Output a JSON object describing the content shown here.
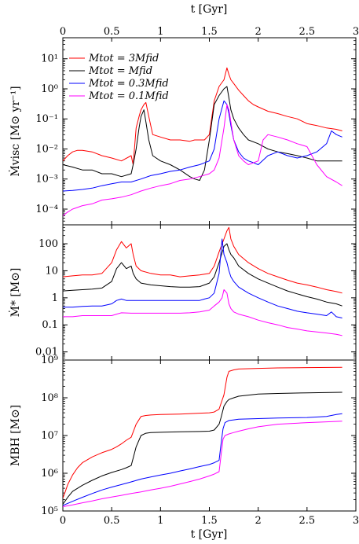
{
  "chart_data": [
    {
      "type": "line",
      "panel": "top",
      "ylabel": "Ṁvisc [M⊙ yr⁻¹]",
      "yscale": "log",
      "ylim": [
        3e-05,
        50
      ],
      "ytick_values": [
        0.0001,
        0.001,
        0.01,
        0.1,
        1,
        10
      ],
      "ytick_labels": [
        "10⁻⁴",
        "10⁻³",
        "10⁻²",
        "10⁻¹",
        "10⁰",
        "10¹"
      ],
      "legend_position": "top-left",
      "series": [
        {
          "name": "Mtot = 3Mfid",
          "color": "#ff0000",
          "x": [
            0,
            0.05,
            0.1,
            0.15,
            0.2,
            0.3,
            0.4,
            0.5,
            0.6,
            0.7,
            0.72,
            0.75,
            0.78,
            0.8,
            0.83,
            0.85,
            0.88,
            0.92,
            1.0,
            1.1,
            1.2,
            1.3,
            1.35,
            1.4,
            1.45,
            1.5,
            1.55,
            1.6,
            1.65,
            1.68,
            1.7,
            1.72,
            1.75,
            1.8,
            1.85,
            1.9,
            1.95,
            2.0,
            2.1,
            2.2,
            2.3,
            2.4,
            2.5,
            2.6,
            2.7,
            2.8,
            2.86
          ],
          "y": [
            0.004,
            0.006,
            0.008,
            0.009,
            0.009,
            0.008,
            0.006,
            0.005,
            0.004,
            0.006,
            0.003,
            0.05,
            0.12,
            0.2,
            0.3,
            0.35,
            0.12,
            0.03,
            0.025,
            0.02,
            0.02,
            0.018,
            0.02,
            0.02,
            0.02,
            0.03,
            0.4,
            1.2,
            2.0,
            5.0,
            3.0,
            2.0,
            1.5,
            0.9,
            0.6,
            0.4,
            0.3,
            0.25,
            0.18,
            0.15,
            0.12,
            0.1,
            0.07,
            0.06,
            0.05,
            0.045,
            0.04
          ]
        },
        {
          "name": "Mtot = Mfid",
          "color": "#000000",
          "x": [
            0,
            0.1,
            0.2,
            0.3,
            0.4,
            0.5,
            0.6,
            0.7,
            0.72,
            0.75,
            0.78,
            0.8,
            0.83,
            0.85,
            0.88,
            0.92,
            1.0,
            1.1,
            1.2,
            1.3,
            1.35,
            1.4,
            1.45,
            1.5,
            1.55,
            1.6,
            1.65,
            1.68,
            1.7,
            1.72,
            1.75,
            1.8,
            1.85,
            1.9,
            2.0,
            2.1,
            2.2,
            2.3,
            2.4,
            2.5,
            2.6,
            2.7,
            2.8,
            2.86
          ],
          "y": [
            0.003,
            0.0025,
            0.002,
            0.002,
            0.0015,
            0.0015,
            0.0012,
            0.0015,
            0.003,
            0.01,
            0.05,
            0.12,
            0.2,
            0.08,
            0.02,
            0.006,
            0.004,
            0.003,
            0.002,
            0.0012,
            0.001,
            0.0009,
            0.002,
            0.02,
            0.3,
            0.6,
            1.0,
            1.2,
            0.5,
            0.2,
            0.1,
            0.05,
            0.03,
            0.02,
            0.015,
            0.01,
            0.008,
            0.007,
            0.006,
            0.005,
            0.004,
            0.004,
            0.004,
            0.004
          ]
        },
        {
          "name": "Mtot = 0.3Mfid",
          "color": "#0000ff",
          "x": [
            0,
            0.1,
            0.2,
            0.3,
            0.4,
            0.5,
            0.6,
            0.7,
            0.8,
            0.9,
            1.0,
            1.1,
            1.2,
            1.3,
            1.4,
            1.5,
            1.55,
            1.6,
            1.65,
            1.68,
            1.7,
            1.72,
            1.75,
            1.8,
            1.85,
            1.9,
            1.95,
            2.0,
            2.1,
            2.2,
            2.3,
            2.4,
            2.5,
            2.6,
            2.7,
            2.75,
            2.8,
            2.86
          ],
          "y": [
            0.0004,
            0.00042,
            0.00045,
            0.0005,
            0.0006,
            0.0007,
            0.0008,
            0.0008,
            0.001,
            0.0013,
            0.0015,
            0.0018,
            0.002,
            0.0025,
            0.003,
            0.004,
            0.01,
            0.1,
            0.4,
            0.3,
            0.15,
            0.06,
            0.02,
            0.008,
            0.005,
            0.004,
            0.0035,
            0.003,
            0.006,
            0.008,
            0.006,
            0.005,
            0.006,
            0.008,
            0.015,
            0.04,
            0.03,
            0.025
          ]
        },
        {
          "name": "Mtot = 0.1Mfid",
          "color": "#ff00ff",
          "x": [
            0,
            0.05,
            0.1,
            0.2,
            0.3,
            0.4,
            0.5,
            0.6,
            0.7,
            0.8,
            0.9,
            1.0,
            1.1,
            1.2,
            1.3,
            1.4,
            1.5,
            1.55,
            1.6,
            1.65,
            1.68,
            1.7,
            1.72,
            1.75,
            1.8,
            1.85,
            1.9,
            2.0,
            2.05,
            2.1,
            2.2,
            2.3,
            2.4,
            2.5,
            2.6,
            2.7,
            2.8,
            2.86
          ],
          "y": [
            6e-05,
            8e-05,
            0.0001,
            0.00013,
            0.00015,
            0.0002,
            0.00022,
            0.00025,
            0.0003,
            0.0004,
            0.0005,
            0.0006,
            0.0007,
            0.0009,
            0.001,
            0.0012,
            0.0015,
            0.002,
            0.005,
            0.05,
            0.3,
            0.2,
            0.08,
            0.02,
            0.006,
            0.004,
            0.003,
            0.004,
            0.02,
            0.03,
            0.025,
            0.02,
            0.015,
            0.012,
            0.003,
            0.0012,
            0.0008,
            0.0006
          ]
        }
      ]
    },
    {
      "type": "line",
      "panel": "middle",
      "ylabel": "Ṁ* [M⊙]",
      "yscale": "log",
      "ylim": [
        0.005,
        500
      ],
      "ytick_values": [
        0.01,
        0.1,
        1,
        10,
        100
      ],
      "ytick_labels": [
        "0.01",
        "0.1",
        "1",
        "10",
        "100"
      ],
      "series": [
        {
          "name": "Mtot = 3Mfid",
          "color": "#ff0000",
          "x": [
            0,
            0.1,
            0.2,
            0.3,
            0.4,
            0.5,
            0.55,
            0.6,
            0.65,
            0.7,
            0.72,
            0.75,
            0.8,
            0.9,
            1.0,
            1.1,
            1.2,
            1.3,
            1.4,
            1.45,
            1.5,
            1.55,
            1.6,
            1.65,
            1.68,
            1.7,
            1.72,
            1.75,
            1.8,
            1.9,
            2.0,
            2.1,
            2.2,
            2.3,
            2.4,
            2.5,
            2.6,
            2.7,
            2.8,
            2.86
          ],
          "y": [
            6,
            6.5,
            7,
            7,
            8,
            20,
            60,
            120,
            70,
            100,
            40,
            15,
            10,
            8,
            7,
            7,
            6,
            6.5,
            7,
            7.5,
            8,
            15,
            50,
            150,
            300,
            400,
            150,
            80,
            40,
            20,
            12,
            8,
            6,
            4.5,
            3.5,
            3,
            2.5,
            2,
            1.7,
            1.5
          ]
        },
        {
          "name": "Mtot = Mfid",
          "color": "#000000",
          "x": [
            0,
            0.1,
            0.2,
            0.3,
            0.4,
            0.5,
            0.55,
            0.6,
            0.65,
            0.7,
            0.72,
            0.75,
            0.8,
            0.9,
            1.0,
            1.1,
            1.2,
            1.3,
            1.4,
            1.45,
            1.5,
            1.55,
            1.6,
            1.65,
            1.68,
            1.7,
            1.72,
            1.75,
            1.8,
            1.9,
            2.0,
            2.1,
            2.2,
            2.3,
            2.4,
            2.5,
            2.6,
            2.7,
            2.8,
            2.86
          ],
          "y": [
            1.8,
            1.9,
            2,
            2.1,
            2.3,
            4,
            12,
            20,
            12,
            15,
            8,
            5,
            3.5,
            3,
            2.8,
            2.6,
            2.5,
            2.5,
            2.6,
            3,
            3.5,
            6,
            20,
            80,
            100,
            60,
            40,
            30,
            15,
            8,
            5,
            3.5,
            2.5,
            1.8,
            1.4,
            1.1,
            0.9,
            0.7,
            0.6,
            0.5
          ]
        },
        {
          "name": "Mtot = 0.3Mfid",
          "color": "#0000ff",
          "x": [
            0,
            0.1,
            0.2,
            0.3,
            0.4,
            0.5,
            0.55,
            0.6,
            0.65,
            0.7,
            0.8,
            0.9,
            1.0,
            1.1,
            1.2,
            1.3,
            1.4,
            1.45,
            1.5,
            1.55,
            1.6,
            1.63,
            1.65,
            1.68,
            1.7,
            1.72,
            1.75,
            1.8,
            1.9,
            2.0,
            2.1,
            2.2,
            2.3,
            2.4,
            2.5,
            2.6,
            2.7,
            2.75,
            2.8,
            2.86
          ],
          "y": [
            0.45,
            0.45,
            0.48,
            0.5,
            0.5,
            0.6,
            0.8,
            0.9,
            0.8,
            0.8,
            0.8,
            0.8,
            0.8,
            0.8,
            0.8,
            0.8,
            0.8,
            0.9,
            1,
            1.5,
            8,
            150,
            40,
            20,
            10,
            6,
            4,
            2.5,
            1.5,
            1,
            0.7,
            0.5,
            0.4,
            0.32,
            0.28,
            0.25,
            0.22,
            0.3,
            0.2,
            0.18
          ]
        },
        {
          "name": "Mtot = 0.1Mfid",
          "color": "#ff00ff",
          "x": [
            0,
            0.1,
            0.2,
            0.3,
            0.4,
            0.5,
            0.55,
            0.6,
            0.7,
            0.8,
            0.9,
            1.0,
            1.1,
            1.2,
            1.3,
            1.4,
            1.5,
            1.55,
            1.6,
            1.63,
            1.65,
            1.68,
            1.7,
            1.72,
            1.75,
            1.8,
            1.9,
            2.0,
            2.1,
            2.2,
            2.3,
            2.4,
            2.5,
            2.6,
            2.7,
            2.8,
            2.86
          ],
          "y": [
            0.2,
            0.2,
            0.22,
            0.22,
            0.22,
            0.22,
            0.25,
            0.28,
            0.27,
            0.27,
            0.27,
            0.27,
            0.27,
            0.27,
            0.28,
            0.3,
            0.35,
            0.5,
            0.7,
            1,
            2,
            1.5,
            0.6,
            0.4,
            0.3,
            0.25,
            0.2,
            0.15,
            0.12,
            0.1,
            0.08,
            0.07,
            0.06,
            0.055,
            0.05,
            0.045,
            0.04
          ]
        }
      ]
    },
    {
      "type": "line",
      "panel": "bottom",
      "xlabel": "t [Gyr]",
      "ylabel": "MBH [M⊙]",
      "yscale": "log",
      "ylim": [
        100000,
        1000000000
      ],
      "ytick_values": [
        100000,
        1000000,
        10000000,
        100000000,
        1000000000
      ],
      "ytick_labels": [
        "10⁵",
        "10⁶",
        "10⁷",
        "10⁸",
        "10⁹"
      ],
      "xlim": [
        0,
        3
      ],
      "xtick_values": [
        0,
        0.5,
        1,
        1.5,
        2,
        2.5,
        3
      ],
      "xtick_labels": [
        "0",
        "0.5",
        "1",
        "1.5",
        "2",
        "2.5",
        "3"
      ],
      "series": [
        {
          "name": "Mtot = 3Mfid",
          "color": "#ff0000",
          "x": [
            0,
            0.02,
            0.05,
            0.1,
            0.15,
            0.2,
            0.3,
            0.4,
            0.5,
            0.55,
            0.6,
            0.65,
            0.7,
            0.75,
            0.8,
            0.85,
            0.9,
            1.0,
            1.2,
            1.4,
            1.5,
            1.55,
            1.6,
            1.65,
            1.68,
            1.7,
            1.75,
            1.8,
            2.0,
            2.2,
            2.5,
            2.86
          ],
          "y": [
            220000,
            300000,
            500000,
            900000,
            1400000,
            1900000,
            2700000,
            3500000,
            4300000,
            5000000,
            6000000,
            7500000,
            9000000,
            20000000,
            32000000,
            34000000,
            35000000,
            36000000,
            37000000,
            39000000,
            40000000,
            42000000,
            50000000,
            120000000,
            350000000,
            500000000,
            550000000,
            580000000,
            600000000,
            620000000,
            630000000,
            640000000
          ]
        },
        {
          "name": "Mtot = Mfid",
          "color": "#000000",
          "x": [
            0,
            0.05,
            0.1,
            0.2,
            0.3,
            0.4,
            0.5,
            0.6,
            0.65,
            0.7,
            0.72,
            0.75,
            0.8,
            0.85,
            0.9,
            1.0,
            1.2,
            1.4,
            1.5,
            1.55,
            1.6,
            1.62,
            1.65,
            1.68,
            1.7,
            1.75,
            1.8,
            2.0,
            2.2,
            2.5,
            2.86
          ],
          "y": [
            150000,
            230000,
            330000,
            480000,
            650000,
            850000,
            1050000,
            1250000,
            1400000,
            1600000,
            2500000,
            5000000,
            10000000,
            11500000,
            12000000,
            12200000,
            12500000,
            12800000,
            13000000,
            14000000,
            20000000,
            30000000,
            60000000,
            80000000,
            90000000,
            100000000,
            110000000,
            125000000,
            130000000,
            135000000,
            140000000
          ]
        },
        {
          "name": "Mtot = 0.3Mfid",
          "color": "#0000ff",
          "x": [
            0,
            0.1,
            0.2,
            0.3,
            0.4,
            0.5,
            0.6,
            0.7,
            0.8,
            0.9,
            1.0,
            1.1,
            1.2,
            1.3,
            1.4,
            1.5,
            1.55,
            1.6,
            1.62,
            1.64,
            1.66,
            1.7,
            1.75,
            1.8,
            2.0,
            2.2,
            2.5,
            2.7,
            2.8,
            2.86
          ],
          "y": [
            140000,
            180000,
            230000,
            290000,
            360000,
            430000,
            500000,
            590000,
            700000,
            800000,
            900000,
            1000000,
            1150000,
            1300000,
            1500000,
            1700000,
            1900000,
            2200000,
            6000000,
            15000000,
            22000000,
            25000000,
            26000000,
            27000000,
            28000000,
            29000000,
            30000000,
            32000000,
            36000000,
            38000000
          ]
        },
        {
          "name": "Mtot = 0.1Mfid",
          "color": "#ff00ff",
          "x": [
            0,
            0.1,
            0.2,
            0.3,
            0.4,
            0.5,
            0.6,
            0.7,
            0.8,
            0.9,
            1.0,
            1.1,
            1.2,
            1.3,
            1.4,
            1.5,
            1.55,
            1.6,
            1.62,
            1.64,
            1.66,
            1.7,
            1.75,
            1.8,
            1.9,
            2.0,
            2.2,
            2.5,
            2.7,
            2.86
          ],
          "y": [
            130000,
            145000,
            165000,
            185000,
            210000,
            235000,
            260000,
            290000,
            320000,
            360000,
            400000,
            450000,
            520000,
            600000,
            700000,
            850000,
            950000,
            1100000,
            3000000,
            8000000,
            10000000,
            11000000,
            12000000,
            13000000,
            15000000,
            17000000,
            20000000,
            22000000,
            23000000,
            24000000
          ]
        }
      ]
    }
  ],
  "top_axis": {
    "label": "t [Gyr]",
    "tick_labels": [
      "0",
      "0.5",
      "1",
      "1.5",
      "2",
      "2.5",
      "3"
    ]
  },
  "legend": [
    {
      "label": "Mtot = 3Mfid",
      "color": "#ff0000"
    },
    {
      "label": "Mtot = Mfid",
      "color": "#000000"
    },
    {
      "label": "Mtot = 0.3Mfid",
      "color": "#0000ff"
    },
    {
      "label": "Mtot = 0.1Mfid",
      "color": "#ff00ff"
    }
  ]
}
